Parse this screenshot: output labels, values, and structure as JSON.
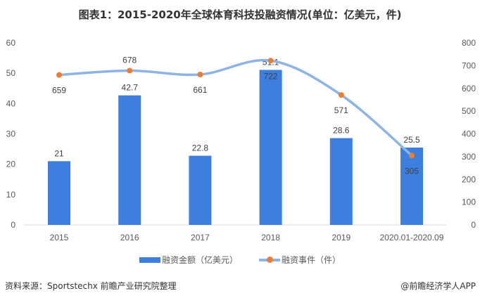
{
  "chart_data": {
    "type": "bar",
    "title": "图表1：2015-2020年全球体育科技投融资情况(单位：亿美元，件)",
    "categories": [
      "2015",
      "2016",
      "2017",
      "2018",
      "2019",
      "2020.01-2020.09"
    ],
    "series": [
      {
        "name": "融资金额（亿美元）",
        "type": "bar",
        "axis": "left",
        "color": "#3d7fdf",
        "values": [
          21,
          42.7,
          22.8,
          51.1,
          28.6,
          25.5
        ]
      },
      {
        "name": "融资事件（件）",
        "type": "line",
        "axis": "right",
        "color": "#8db4e8",
        "marker_color": "#ed7d31",
        "values": [
          659,
          678,
          661,
          722,
          571,
          305
        ]
      }
    ],
    "y_left": {
      "ylim": [
        0,
        60
      ],
      "ticks": [
        "0",
        "10",
        "20",
        "30",
        "40",
        "50",
        "60"
      ]
    },
    "y_right": {
      "ylim": [
        0,
        800
      ],
      "ticks": [
        "0",
        "100",
        "200",
        "300",
        "400",
        "500",
        "600",
        "700",
        "800"
      ]
    },
    "grid": false,
    "legend": "bottom"
  },
  "footer": {
    "source": "资料来源：Sportstechx 前瞻产业研究院整理",
    "credit": "@前瞻经济学人APP"
  }
}
